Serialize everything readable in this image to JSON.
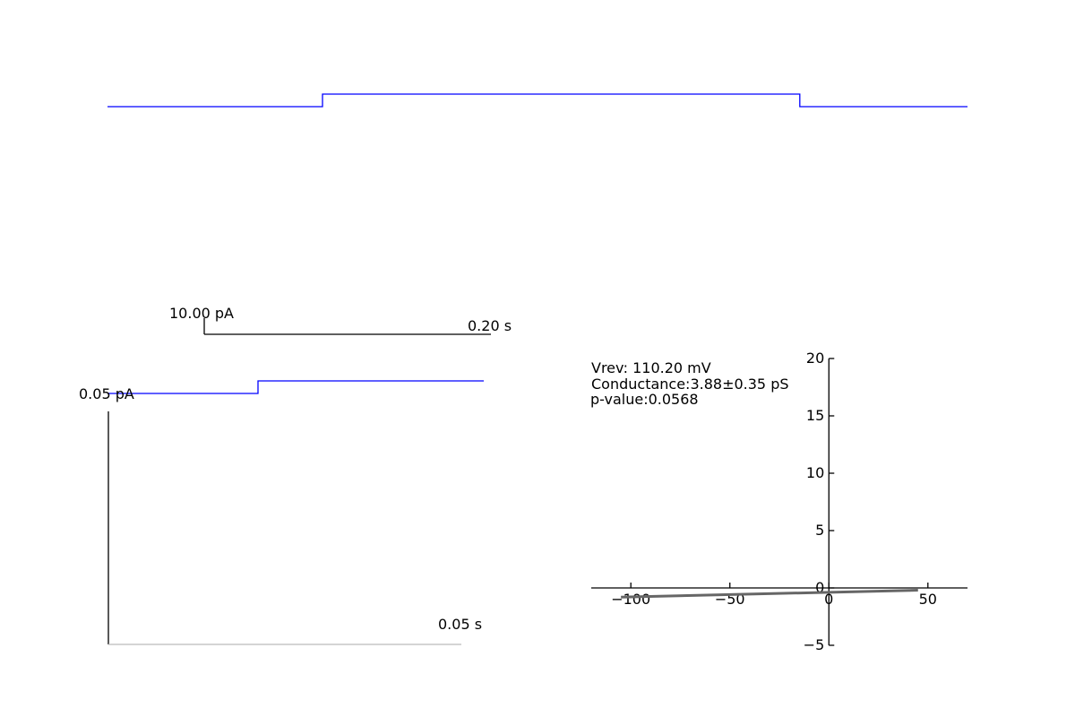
{
  "colors": {
    "trace": "#0000ff",
    "scalebar": "#000000",
    "fit_line": "#666666",
    "axis": "#000000",
    "background": "#ffffff"
  },
  "chart_data": [
    {
      "type": "line",
      "series": [
        {
          "points": [
            [
              0,
              0
            ],
            [
              0.25,
              0
            ],
            [
              0.25,
              1
            ],
            [
              0.805,
              1
            ],
            [
              0.805,
              0
            ],
            [
              1,
              0
            ]
          ]
        }
      ],
      "scalebar": {
        "current_label": "10.00 pA",
        "time_label": "0.20 s"
      }
    },
    {
      "type": "line",
      "series": [
        {
          "points": [
            [
              0,
              0
            ],
            [
              0.4,
              0
            ],
            [
              0.4,
              1
            ],
            [
              1,
              1
            ]
          ]
        }
      ],
      "scalebar": {
        "current_label": "0.05 pA",
        "time_label": "0.05 s"
      }
    },
    {
      "type": "line",
      "xlim": [
        -120,
        70
      ],
      "ylim": [
        -5,
        20
      ],
      "xticks": [
        -100,
        -50,
        0,
        50
      ],
      "yticks": [
        -5,
        0,
        5,
        10,
        15,
        20
      ],
      "x_tick_labels": [
        "−100",
        "−50",
        "0",
        "50"
      ],
      "y_tick_labels": [
        "−5",
        "0",
        "5",
        "10",
        "15",
        "20"
      ],
      "series": [
        {
          "x": [
            -105,
            45
          ],
          "y": [
            -0.8,
            -0.2
          ]
        }
      ],
      "annotations": [
        "Vrev: 110.20 mV",
        "Conductance:3.88±0.35 pS",
        "p-value:0.0568"
      ]
    }
  ]
}
